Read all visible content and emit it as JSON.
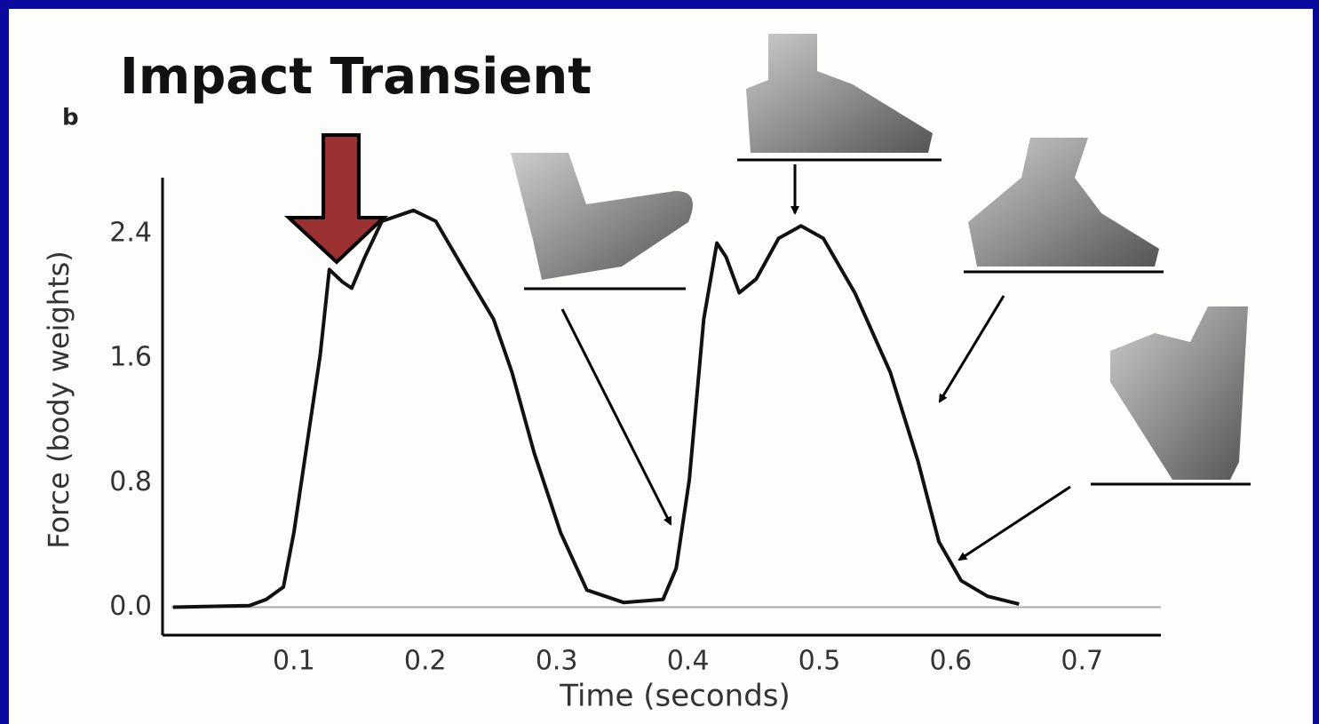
{
  "chart_data": {
    "type": "line",
    "title": "Impact Transient",
    "panel_label": "b",
    "xlabel": "Time (seconds)",
    "ylabel": "Force (body weights)",
    "x": [
      0.008,
      0.066,
      0.079,
      0.092,
      0.1,
      0.11,
      0.12,
      0.127,
      0.137,
      0.144,
      0.154,
      0.167,
      0.191,
      0.208,
      0.228,
      0.252,
      0.266,
      0.283,
      0.303,
      0.323,
      0.351,
      0.381,
      0.391,
      0.401,
      0.412,
      0.422,
      0.429,
      0.439,
      0.452,
      0.469,
      0.486,
      0.503,
      0.527,
      0.554,
      0.575,
      0.591,
      0.608,
      0.628,
      0.652
    ],
    "values": [
      0,
      0.01,
      0.05,
      0.13,
      0.48,
      1.05,
      1.62,
      2.17,
      2.09,
      2.05,
      2.25,
      2.48,
      2.55,
      2.48,
      2.19,
      1.85,
      1.51,
      0.99,
      0.48,
      0.11,
      0.03,
      0.05,
      0.25,
      0.82,
      1.85,
      2.34,
      2.25,
      2.02,
      2.11,
      2.37,
      2.45,
      2.37,
      2.02,
      1.51,
      0.94,
      0.42,
      0.17,
      0.07,
      0.02
    ],
    "color": "#111111",
    "xlim": [
      0,
      0.76
    ],
    "ylim": [
      -0.18,
      2.76
    ],
    "xticks": [
      0.1,
      0.2,
      0.3,
      0.4,
      0.5,
      0.6,
      0.7
    ],
    "yticks": [
      {
        "value": 0,
        "label": "0.0"
      },
      0.8,
      1.6,
      2.4
    ]
  }
}
